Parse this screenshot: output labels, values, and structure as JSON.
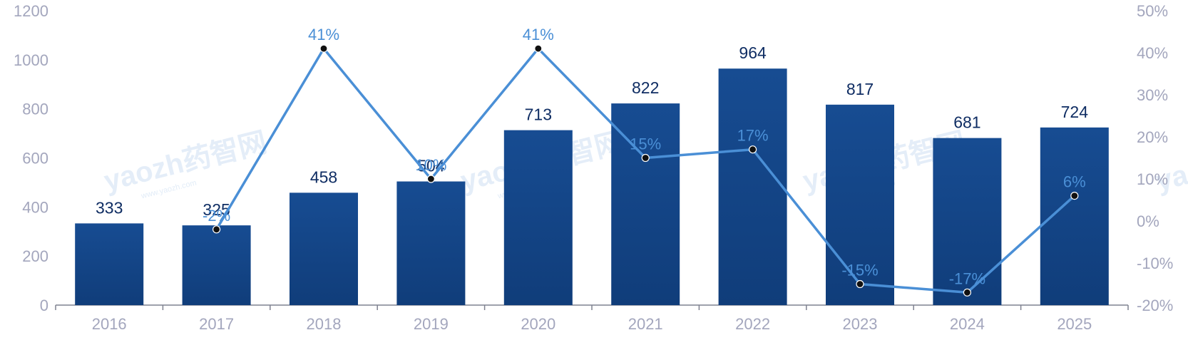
{
  "chart_data": {
    "type": "bar",
    "categories": [
      "2016",
      "2017",
      "2018",
      "2019",
      "2020",
      "2021",
      "2022",
      "2023",
      "2024",
      "2025"
    ],
    "series": [
      {
        "type": "bar",
        "values": [
          333,
          325,
          458,
          504,
          713,
          822,
          964,
          817,
          681,
          724
        ],
        "axis": "left",
        "color": "#164a8f"
      },
      {
        "type": "line",
        "values": [
          null,
          -2,
          41,
          10,
          41,
          15,
          17,
          -15,
          -17,
          6
        ],
        "labels": [
          "",
          "-2%",
          "41%",
          "10%",
          "41%",
          "15%",
          "17%",
          "-15%",
          "-17%",
          "6%"
        ],
        "axis": "right",
        "color": "#4a8fd6"
      }
    ],
    "ylim": [
      0,
      1200
    ],
    "yticks": [
      0,
      200,
      400,
      600,
      800,
      1000,
      1200
    ],
    "y2lim": [
      -20,
      50
    ],
    "y2ticks": [
      "-20%",
      "-10%",
      "0%",
      "10%",
      "20%",
      "30%",
      "40%",
      "50%"
    ],
    "grid": false,
    "legend": "none"
  },
  "watermark": {
    "text": "yaozh药智网",
    "sub": "www.yaozh.com"
  }
}
